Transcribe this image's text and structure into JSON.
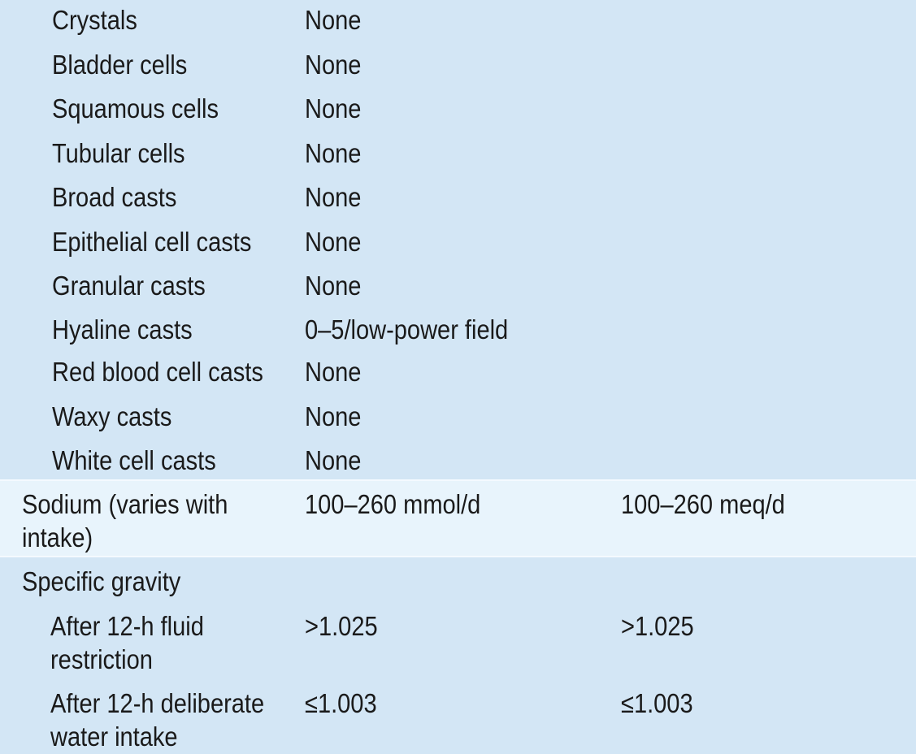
{
  "section_a": {
    "rows": [
      {
        "name": "Crystals",
        "si": "None"
      },
      {
        "name": "Bladder cells",
        "si": "None"
      },
      {
        "name": "Squamous cells",
        "si": "None"
      },
      {
        "name": "Tubular cells",
        "si": "None"
      },
      {
        "name": "Broad casts",
        "si": "None"
      },
      {
        "name": "Epithelial cell casts",
        "si": "None"
      },
      {
        "name": "Granular casts",
        "si": "None"
      },
      {
        "name": "Hyaline casts",
        "si": "0–5/low-power field"
      },
      {
        "name": "Red blood cell casts",
        "si": "None"
      },
      {
        "name": "Waxy casts",
        "si": "None"
      },
      {
        "name": "White cell casts",
        "si": "None"
      }
    ]
  },
  "sodium": {
    "name_line1": "Sodium (varies with",
    "name_line2": "intake)",
    "si": "100–260 mmol/d",
    "conventional": "100–260 meq/d"
  },
  "specific_gravity": {
    "heading": "Specific gravity",
    "rows": [
      {
        "name_line1": "After 12-h fluid",
        "name_line2": "restriction",
        "si": ">1.025",
        "conventional": ">1.025"
      },
      {
        "name_line1": "After 12-h deliberate",
        "name_line2": "water intake",
        "si": "≤1.003",
        "conventional": "≤1.003"
      }
    ]
  }
}
